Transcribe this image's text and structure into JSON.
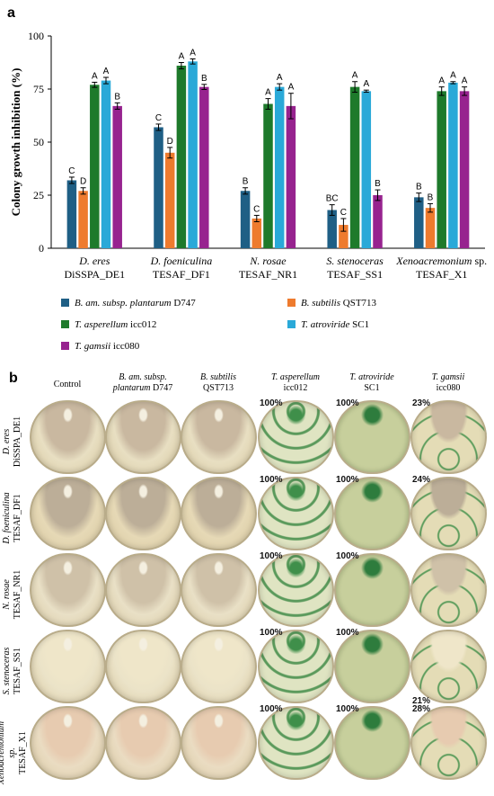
{
  "panel_a_label": "a",
  "panel_b_label": "b",
  "chart_data": {
    "type": "bar",
    "ylabel": "Colony growth inhibition (%)",
    "ylim": [
      0,
      100
    ],
    "yticks": [
      "0",
      "25",
      "50",
      "75",
      "100"
    ],
    "categories": [
      {
        "italic": "D. eres",
        "strain": "DiSSPA_DE1"
      },
      {
        "italic": "D. foeniculina",
        "strain": "TESAF_DF1"
      },
      {
        "italic": "N. rosae",
        "strain": "TESAF_NR1"
      },
      {
        "italic": "S. stenoceras",
        "strain": "TESAF_SS1"
      },
      {
        "italic": "Xenoacremonium",
        "suffix": " sp.",
        "strain": "TESAF_X1"
      }
    ],
    "series": [
      {
        "name_italic": "B. am. subsp. plantarum",
        "name_rest": " D747",
        "color": "#1f5f85",
        "values": [
          32,
          57,
          27,
          18,
          24
        ],
        "errors": [
          1.5,
          1.5,
          1.5,
          2.5,
          2
        ],
        "letters": [
          "C",
          "C",
          "B",
          "BC",
          "B"
        ]
      },
      {
        "name_italic": "B. subtilis",
        "name_rest": " QST713",
        "color": "#ee7b2e",
        "values": [
          27,
          45,
          14,
          11,
          19
        ],
        "errors": [
          1.5,
          2.5,
          1.5,
          3,
          2
        ],
        "letters": [
          "D",
          "D",
          "C",
          "C",
          "B"
        ]
      },
      {
        "name_italic": "T. asperellum",
        "name_rest": " icc012",
        "color": "#1e7a2b",
        "values": [
          77,
          86,
          68,
          76,
          74
        ],
        "errors": [
          1.2,
          1.5,
          2.5,
          2.5,
          2
        ],
        "letters": [
          "A",
          "A",
          "A",
          "A",
          "A"
        ]
      },
      {
        "name_italic": "T. atroviride",
        "name_rest": " SC1",
        "color": "#2aa9d8",
        "values": [
          79,
          88,
          76,
          74,
          78
        ],
        "errors": [
          1.5,
          1.2,
          1.5,
          0.5,
          0.5
        ],
        "letters": [
          "A",
          "A",
          "A",
          "A",
          "A"
        ]
      },
      {
        "name_italic": "T. gamsii",
        "name_rest": " icc080",
        "color": "#97238f",
        "values": [
          67,
          76,
          67,
          25,
          74
        ],
        "errors": [
          1.5,
          1.2,
          6,
          2.5,
          2
        ],
        "letters": [
          "B",
          "B",
          "A",
          "B",
          "A"
        ]
      }
    ]
  },
  "photo_grid": {
    "columns": [
      {
        "line1": "Control",
        "line1_italic": false,
        "line2": ""
      },
      {
        "line1": "B. am. subsp.",
        "line1_italic": true,
        "line2_italic": "plantarum",
        "line2": " D747"
      },
      {
        "line1": "B. subtilis",
        "line1_italic": true,
        "line2": "QST713"
      },
      {
        "line1": "T. asperellum",
        "line1_italic": true,
        "line2": "icc012"
      },
      {
        "line1": "T. atroviride",
        "line1_italic": true,
        "line2": "SC1"
      },
      {
        "line1": "T. gamsii",
        "line1_italic": true,
        "line2": "icc080"
      }
    ],
    "rows": [
      {
        "italic": "D. eres",
        "strain": "DiSSPA_DE1",
        "pct": [
          "",
          "",
          "",
          "100%",
          "100%",
          "23%"
        ]
      },
      {
        "italic": "D. foeniculina",
        "strain": "TESAF_DF1",
        "pct": [
          "",
          "",
          "",
          "100%",
          "100%",
          "24%"
        ]
      },
      {
        "italic": "N. rosae",
        "strain": "TESAF_NR1",
        "pct": [
          "",
          "",
          "",
          "100%",
          "100%",
          ""
        ]
      },
      {
        "italic": "S. stenoceras",
        "strain": "TESAF_SS1",
        "pct": [
          "",
          "",
          "",
          "100%",
          "100%",
          "21%"
        ]
      },
      {
        "italic": "Xenoacremonium sp.",
        "strain": "TESAF_X1",
        "pct": [
          "",
          "",
          "",
          "100%",
          "100%",
          "28%"
        ]
      }
    ]
  }
}
